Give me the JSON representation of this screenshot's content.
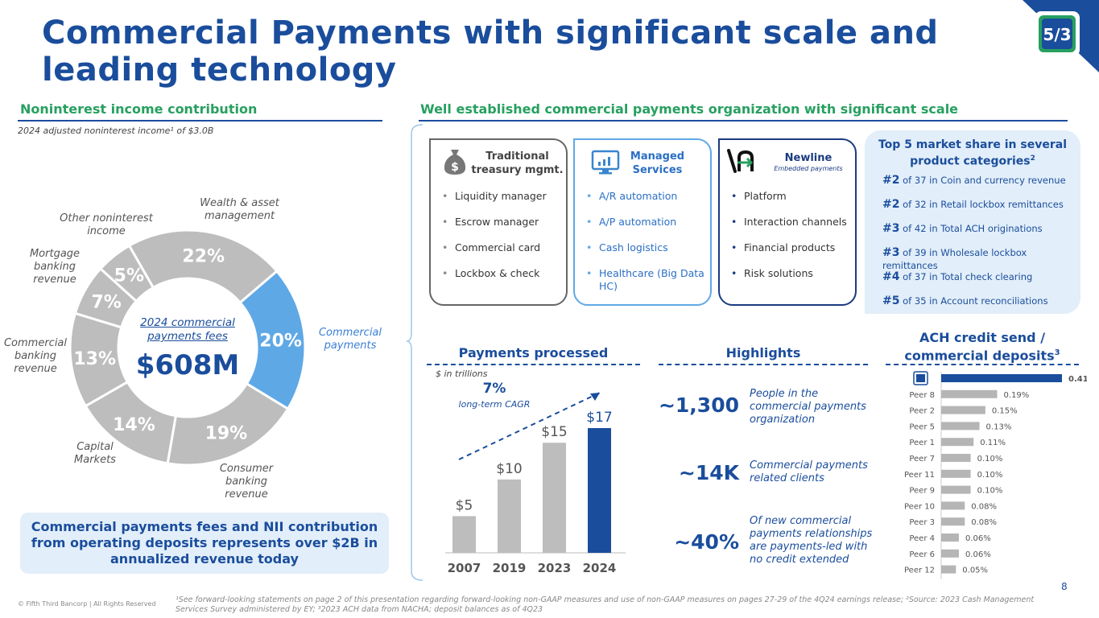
{
  "title": "Commercial Payments with significant scale and leading technology",
  "left_section": {
    "heading": "Noninterest income contribution",
    "note": "2024 adjusted noninterest income¹ of $3.0B",
    "center_label": "2024 commercial payments fees",
    "center_value": "$608M",
    "callout": "Commercial payments fees and NII contribution from operating deposits represents over $2B in annualized revenue today"
  },
  "right_section": {
    "heading": "Well established commercial payments organization with significant scale"
  },
  "cards": [
    {
      "title": "Traditional treasury mgmt.",
      "subtitle": "",
      "icon": "money-bag-icon",
      "items": [
        "Liquidity manager",
        "Escrow manager",
        "Commercial card",
        "Lockbox & check"
      ]
    },
    {
      "title": "Managed Services",
      "subtitle": "",
      "icon": "monitor-chart-icon",
      "items": [
        "A/R automation",
        "A/P automation",
        "Cash logistics",
        "Healthcare (Big Data HC)"
      ]
    },
    {
      "title": "Newline",
      "subtitle": "Embedded payments",
      "icon": "newline-logo-icon",
      "items": [
        "Platform",
        "Interaction channels",
        "Financial products",
        "Risk solutions"
      ]
    }
  ],
  "market_share": {
    "title": "Top 5 market share in several product categories",
    "title_sup": "2",
    "rows": [
      {
        "rank": "#2",
        "text": "of 37 in Coin and currency revenue"
      },
      {
        "rank": "#2",
        "text": "of 32 in Retail lockbox remittances"
      },
      {
        "rank": "#3",
        "text": "of 42 in Total ACH originations"
      },
      {
        "rank": "#3",
        "text": "of 39 in Wholesale lockbox remittances"
      },
      {
        "rank": "#4",
        "text": "of 37 in Total check clearing"
      },
      {
        "rank": "#5",
        "text": "of 35 in Account reconciliations"
      }
    ]
  },
  "payments": {
    "heading": "Payments processed",
    "unit_note": "$ in trillions",
    "cagr_value": "7%",
    "cagr_label": "long-term CAGR"
  },
  "highlights": {
    "heading": "Highlights",
    "items": [
      {
        "value": "~1,300",
        "text": "People in the commercial payments organization"
      },
      {
        "value": "~14K",
        "text": "Commercial payments related clients"
      },
      {
        "value": "~40%",
        "text": "Of new commercial payments relationships are payments-led with no credit extended"
      }
    ]
  },
  "ach": {
    "heading": "ACH credit send / commercial deposits",
    "heading_sup": "3"
  },
  "page_number": "8",
  "copyright": "© Fifth Third Bancorp | All Rights Reserved",
  "footnote": "¹See forward-looking statements on page 2 of this presentation regarding forward-looking non-GAAP measures and use of non-GAAP measures on pages 27-29 of the 4Q24 earnings release; ²Source: 2023 Cash Management Services Survey administered by EY; ³2023 ACH data from NACHA; deposit balances as of 4Q23",
  "colors": {
    "navy": "#1a4d9c",
    "green": "#27a060",
    "gray": "#bdbdbd",
    "light_blue": "#5fa8e6"
  },
  "chart_data": [
    {
      "type": "pie",
      "title": "",
      "categories": [
        "Wealth & asset management",
        "Commercial payments",
        "Consumer banking revenue",
        "Capital Markets",
        "Commercial banking revenue",
        "Mortgage banking revenue",
        "Other noninterest income"
      ],
      "values": [
        22,
        20,
        19,
        14,
        13,
        7,
        5
      ],
      "labels": [
        "22%",
        "20%",
        "19%",
        "14%",
        "13%",
        "7%",
        "5%"
      ],
      "highlight": "Commercial payments"
    },
    {
      "type": "bar",
      "title": "Payments processed",
      "categories": [
        "2007",
        "2019",
        "2023",
        "2024"
      ],
      "values": [
        5,
        10,
        15,
        17
      ],
      "labels": [
        "$5",
        "$10",
        "$15",
        "$17"
      ],
      "ylabel": "$ in trillions",
      "highlight": "2024"
    },
    {
      "type": "bar",
      "orientation": "horizontal",
      "title": "ACH credit send / commercial deposits",
      "categories": [
        "Fifth Third",
        "Peer 8",
        "Peer 2",
        "Peer 5",
        "Peer 1",
        "Peer 7",
        "Peer 11",
        "Peer 9",
        "Peer 10",
        "Peer 3",
        "Peer 4",
        "Peer 6",
        "Peer 12"
      ],
      "values": [
        0.41,
        0.19,
        0.15,
        0.13,
        0.11,
        0.1,
        0.1,
        0.1,
        0.08,
        0.08,
        0.06,
        0.06,
        0.05
      ],
      "labels": [
        "0.41%",
        "0.19%",
        "0.15%",
        "0.13%",
        "0.11%",
        "0.10%",
        "0.10%",
        "0.10%",
        "0.08%",
        "0.08%",
        "0.06%",
        "0.06%",
        "0.05%"
      ],
      "highlight": "Fifth Third"
    }
  ]
}
